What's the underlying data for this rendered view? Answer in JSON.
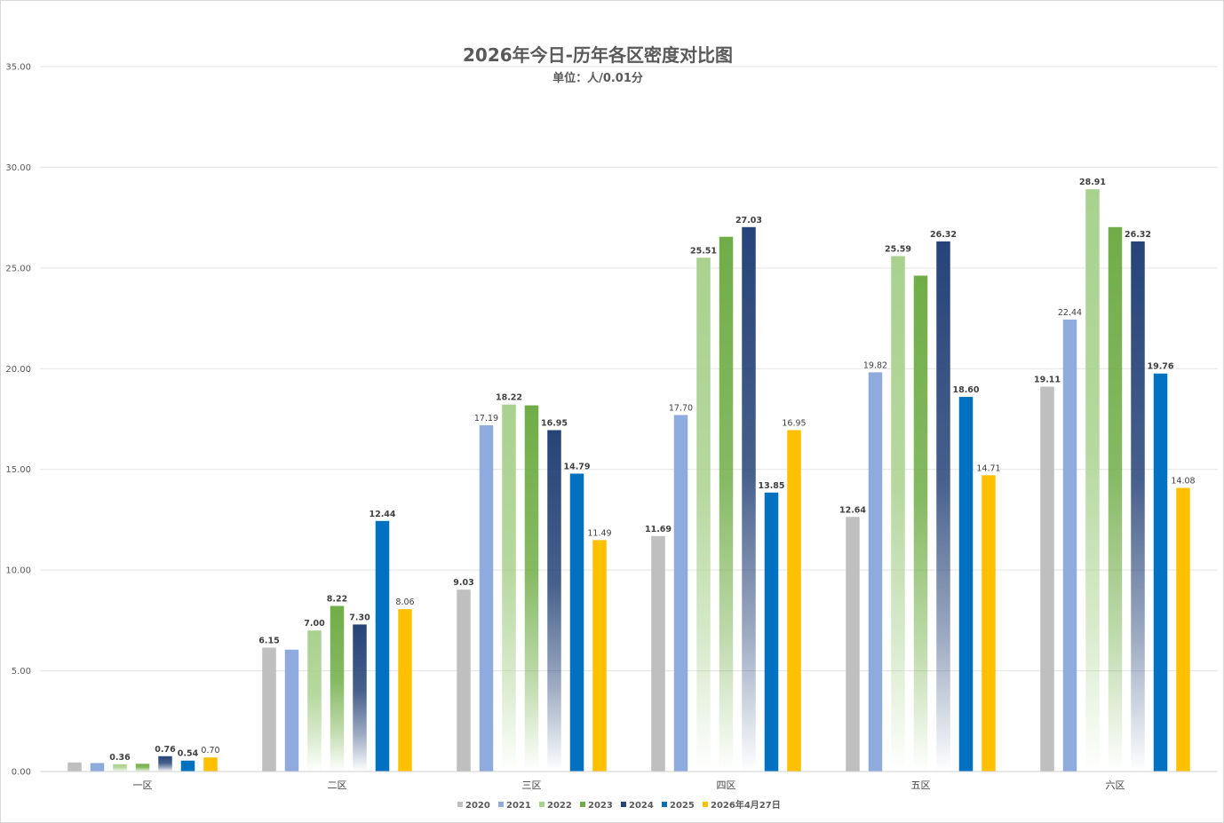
{
  "chart_data": {
    "type": "bar",
    "title": "2026年今日-历年各区密度对比图",
    "subtitle": "单位：人/0.01分",
    "xlabel": "",
    "ylabel": "",
    "ylim": [
      0,
      35
    ],
    "yticks": [
      "0.00",
      "5.00",
      "10.00",
      "15.00",
      "20.00",
      "25.00",
      "30.00",
      "35.00"
    ],
    "grid": true,
    "legend_position": "bottom",
    "categories": [
      "一区",
      "二区",
      "三区",
      "四区",
      "五区",
      "六区"
    ],
    "series": [
      {
        "name": "2020",
        "color": "#bfbfbf",
        "style": "solid",
        "values": [
          0.45,
          6.15,
          9.03,
          11.69,
          12.64,
          19.11
        ],
        "labels": [
          "",
          "6.15",
          "9.03",
          "11.69",
          "12.64",
          "19.11"
        ],
        "label_bold": true
      },
      {
        "name": "2021",
        "color": "#8faadc",
        "style": "solid",
        "values": [
          0.42,
          6.05,
          17.19,
          17.7,
          19.82,
          22.44
        ],
        "labels": [
          "",
          "",
          "17.19",
          "17.70",
          "19.82",
          "22.44"
        ],
        "label_bold": false
      },
      {
        "name": "2022",
        "color": "#a9d18e",
        "style": "gradient",
        "values": [
          0.36,
          7.0,
          18.22,
          25.51,
          25.59,
          28.91
        ],
        "labels": [
          "0.36",
          "7.00",
          "18.22",
          "25.51",
          "25.59",
          "28.91"
        ],
        "label_bold": true
      },
      {
        "name": "2023",
        "color": "#70ad47",
        "style": "gradient",
        "values": [
          0.38,
          8.22,
          18.18,
          26.55,
          24.62,
          27.03
        ],
        "labels": [
          "",
          "8.22",
          "",
          "",
          "",
          ""
        ],
        "label_bold": true
      },
      {
        "name": "2024",
        "color": "#264478",
        "style": "gradient",
        "values": [
          0.76,
          7.3,
          16.95,
          27.03,
          26.32,
          26.32
        ],
        "labels": [
          "0.76",
          "7.30",
          "16.95",
          "27.03",
          "26.32",
          "26.32"
        ],
        "label_bold": true
      },
      {
        "name": "2025",
        "color": "#0070c0",
        "style": "solid",
        "values": [
          0.54,
          12.44,
          14.79,
          13.85,
          18.6,
          19.76
        ],
        "labels": [
          "0.54",
          "12.44",
          "14.79",
          "13.85",
          "18.60",
          "19.76"
        ],
        "label_bold": true
      },
      {
        "name": "2026年4月27日",
        "color": "#ffc000",
        "style": "solid",
        "values": [
          0.7,
          8.06,
          11.49,
          16.95,
          14.71,
          14.08
        ],
        "labels": [
          "0.70",
          "8.06",
          "11.49",
          "16.95",
          "14.71",
          "14.08"
        ],
        "label_bold": false,
        "label_colors": [
          "#404040",
          "#404040",
          "#404040",
          "#404040",
          "#404040",
          "#ff0000"
        ]
      }
    ]
  }
}
